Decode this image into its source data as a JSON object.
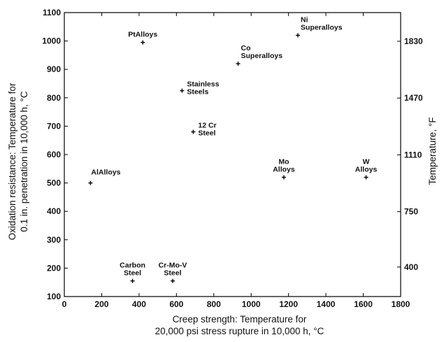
{
  "chart_data": {
    "type": "scatter",
    "xlabel": [
      "Creep strength: Temperature for",
      "20,000 psi stress rupture in 10,000 h, °C"
    ],
    "ylabel": [
      "Oxidation resistance: Temperature for",
      "0.1 in. penetration in 10,000 h, °C"
    ],
    "y2label": "Temperature, °F",
    "xlim": [
      0,
      1800
    ],
    "ylim": [
      100,
      1100
    ],
    "xticks": [
      "0",
      "200",
      "400",
      "600",
      "800",
      "1000",
      "1200",
      "1400",
      "1600",
      "1800"
    ],
    "yticks": [
      "100",
      "200",
      "300",
      "400",
      "500",
      "600",
      "700",
      "800",
      "900",
      "1000",
      "1100"
    ],
    "y2ticks": [
      {
        "label": "400",
        "value_c": 204
      },
      {
        "label": "750",
        "value_c": 399
      },
      {
        "label": "1110",
        "value_c": 599
      },
      {
        "label": "1470",
        "value_c": 799
      },
      {
        "label": "1830",
        "value_c": 999
      }
    ],
    "grid": false,
    "points": [
      {
        "x": 420,
        "y": 995,
        "label": [
          "PtAlloys"
        ],
        "anchor": "above"
      },
      {
        "x": 1250,
        "y": 1020,
        "label": [
          "Ni",
          "Superalloys"
        ],
        "anchor": "above-right"
      },
      {
        "x": 930,
        "y": 920,
        "label": [
          "Co",
          "Superalloys"
        ],
        "anchor": "above-right"
      },
      {
        "x": 630,
        "y": 825,
        "label": [
          "Stainless",
          "Steels"
        ],
        "anchor": "right"
      },
      {
        "x": 690,
        "y": 680,
        "label": [
          "12 Cr",
          "Steel"
        ],
        "anchor": "right"
      },
      {
        "x": 140,
        "y": 500,
        "label": [
          "AlAlloys"
        ],
        "anchor": "above-right-low"
      },
      {
        "x": 1175,
        "y": 520,
        "label": [
          "Mo",
          "Alloys"
        ],
        "anchor": "above"
      },
      {
        "x": 1615,
        "y": 520,
        "label": [
          "W",
          "Alloys"
        ],
        "anchor": "above"
      },
      {
        "x": 365,
        "y": 155,
        "label": [
          "Carbon",
          "Steel"
        ],
        "anchor": "above"
      },
      {
        "x": 580,
        "y": 155,
        "label": [
          "Cr-Mo-V",
          "Steel"
        ],
        "anchor": "above"
      }
    ]
  }
}
